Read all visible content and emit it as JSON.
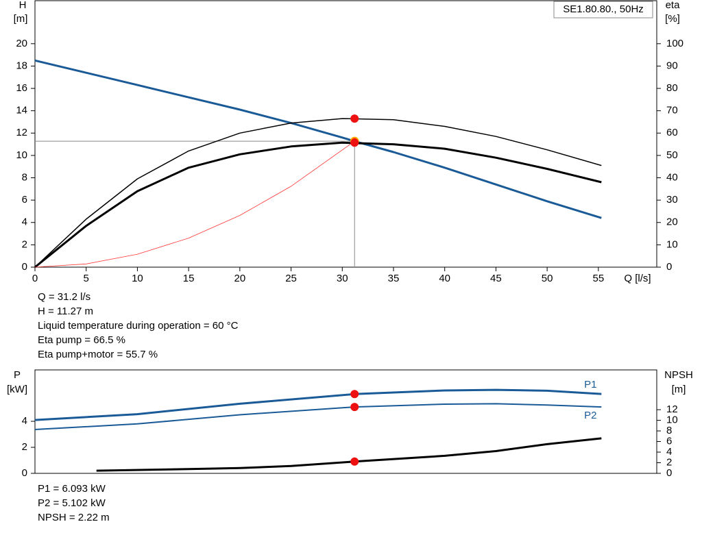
{
  "chart_data": [
    {
      "type": "line",
      "label": "SE1.80.80., 50Hz",
      "y_label": "H",
      "y_unit": "[m]",
      "y2_label": "eta",
      "y2_unit": "[%]",
      "x_label": "Q [l/s]",
      "xlim": [
        0,
        60.7
      ],
      "xticks": [
        0,
        5,
        10,
        15,
        20,
        25,
        30,
        35,
        40,
        45,
        50,
        55
      ],
      "ylim": [
        0,
        23.85
      ],
      "yticks": [
        0,
        2,
        4,
        6,
        8,
        10,
        12,
        14,
        16,
        18,
        20
      ],
      "y2lim": [
        0,
        119.25
      ],
      "y2ticks": [
        0,
        10,
        20,
        30,
        40,
        50,
        60,
        70,
        80,
        90,
        100
      ],
      "series": [
        {
          "color": "#1a5a96",
          "width": 3,
          "x": [
            0,
            5,
            10,
            15,
            20,
            25,
            30,
            31.2,
            35,
            40,
            45,
            50,
            55.3
          ],
          "values": [
            18.5,
            17.4,
            16.3,
            15.2,
            14.1,
            12.9,
            11.6,
            11.27,
            10.3,
            8.9,
            7.4,
            5.9,
            4.4
          ]
        },
        {
          "color": "#000000",
          "width": 1.5,
          "axis": "y2",
          "x": [
            0,
            5,
            10,
            15,
            20,
            25,
            30,
            35,
            40,
            45,
            50,
            55.3
          ],
          "values": [
            0,
            21.5,
            39.5,
            52,
            60,
            64.5,
            66.5,
            66,
            63,
            58.5,
            52.5,
            45.5
          ]
        },
        {
          "color": "#000000",
          "width": 3,
          "axis": "y2",
          "x": [
            0,
            5,
            10,
            15,
            20,
            25,
            30,
            35,
            40,
            45,
            50,
            55.3
          ],
          "values": [
            0,
            18.5,
            34,
            44.5,
            50.5,
            54,
            55.7,
            55,
            53,
            49,
            44,
            38
          ]
        },
        {
          "color": "#ff3333",
          "width": 0.8,
          "x": [
            0,
            5,
            10,
            15,
            20,
            25,
            31.2
          ],
          "values": [
            0,
            0.29,
            1.16,
            2.6,
            4.63,
            7.24,
            11.27
          ]
        }
      ],
      "markers": [
        {
          "x": 31.2,
          "y": 66.5,
          "axis": "y2",
          "color": "#ee1111"
        },
        {
          "x": 31.2,
          "y": 11.27,
          "color": "#ee1111",
          "crosshair": true
        },
        {
          "x": 31.2,
          "y": 55.7,
          "axis": "y2",
          "color": "#ee1111"
        }
      ],
      "readouts": [
        "Q = 31.2 l/s",
        "H = 11.27 m",
        "Liquid temperature during operation = 60 °C",
        "Eta pump = 66.5 %",
        "Eta pump+motor = 55.7 %"
      ]
    },
    {
      "type": "line",
      "y_label": "P",
      "y_unit": "[kW]",
      "y2_label": "NPSH",
      "y2_unit": "[m]",
      "xlim": [
        0,
        60.7
      ],
      "ylim": [
        0,
        7.95
      ],
      "yticks": [
        0,
        2,
        4
      ],
      "y2lim": [
        0,
        19.5
      ],
      "y2ticks": [
        0,
        2,
        4,
        6,
        8,
        10,
        12
      ],
      "series": [
        {
          "name": "P1",
          "color": "#1a5a96",
          "width": 3,
          "x": [
            0,
            10,
            20,
            31.2,
            40,
            45,
            50,
            55.3
          ],
          "values": [
            4.1,
            4.55,
            5.35,
            6.093,
            6.37,
            6.42,
            6.35,
            6.1
          ]
        },
        {
          "name": "P2",
          "color": "#1a5a96",
          "width": 2,
          "x": [
            0,
            10,
            20,
            31.2,
            40,
            45,
            50,
            55.3
          ],
          "values": [
            3.37,
            3.8,
            4.5,
            5.102,
            5.32,
            5.35,
            5.25,
            5.1
          ]
        },
        {
          "color": "#000000",
          "width": 3,
          "axis": "y2",
          "x": [
            6,
            15,
            20,
            25,
            31.2,
            40,
            45,
            50,
            55.3
          ],
          "values": [
            0.5,
            0.8,
            1.0,
            1.4,
            2.22,
            3.3,
            4.2,
            5.5,
            6.6
          ]
        }
      ],
      "markers": [
        {
          "x": 31.2,
          "y": 6.093,
          "color": "#ee1111"
        },
        {
          "x": 31.2,
          "y": 5.102,
          "color": "#ee1111"
        },
        {
          "x": 31.2,
          "y": 2.22,
          "axis": "y2",
          "color": "#ee1111"
        }
      ],
      "readouts": [
        "P1 = 6.093 kW",
        "P2 = 5.102 kW",
        "NPSH = 2.22 m"
      ]
    }
  ]
}
